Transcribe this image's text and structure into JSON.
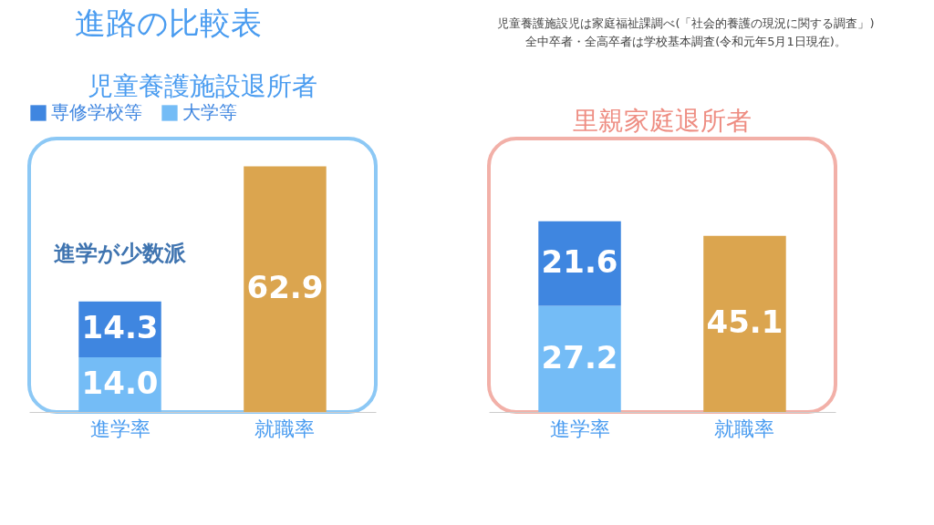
{
  "chart_data": [
    {
      "type": "other",
      "title": "進路の比較表",
      "annotations": [
        "児童養護施設児は家庭福祉課調べ(「社会的養護の現況に関する調査」)",
        "全中卒者・全高卒者は学校基本調査(令和元年5月1日現在)。"
      ]
    },
    {
      "type": "bar",
      "title": "児童養護施設退所者",
      "categories": [
        "進学率",
        "就職率"
      ],
      "stacked": true,
      "ylim": [
        0,
        70
      ],
      "tick_labels": "x",
      "legend": "top left",
      "series": [
        {
          "name": "大学等",
          "color": "#74bcf6",
          "values": [
            14.0,
            null
          ],
          "value_labels": [
            "14.0",
            null
          ]
        },
        {
          "name": "専修学校等",
          "color": "#3f86e0",
          "values": [
            14.3,
            null
          ],
          "value_labels": [
            "14.3",
            null
          ]
        },
        {
          "color": "#dba54f",
          "values": [
            null,
            62.9
          ],
          "value_labels": [
            null,
            "62.9"
          ]
        }
      ],
      "annotations": [
        {
          "text": "進学が少数派",
          "x": "進学率",
          "y": 28.3
        }
      ]
    },
    {
      "type": "bar",
      "title": "里親家庭退所者",
      "categories": [
        "進学率",
        "就職率"
      ],
      "stacked": true,
      "ylim": [
        0,
        70
      ],
      "tick_labels": "x",
      "series": [
        {
          "color": "#74bcf6",
          "values": [
            27.2,
            null
          ],
          "value_labels": [
            "27.2",
            null
          ]
        },
        {
          "color": "#3f86e0",
          "values": [
            21.6,
            null
          ],
          "value_labels": [
            "21.6",
            null
          ]
        },
        {
          "color": "#dba54f",
          "values": [
            null,
            45.1
          ],
          "value_labels": [
            null,
            "45.1"
          ]
        }
      ]
    }
  ]
}
